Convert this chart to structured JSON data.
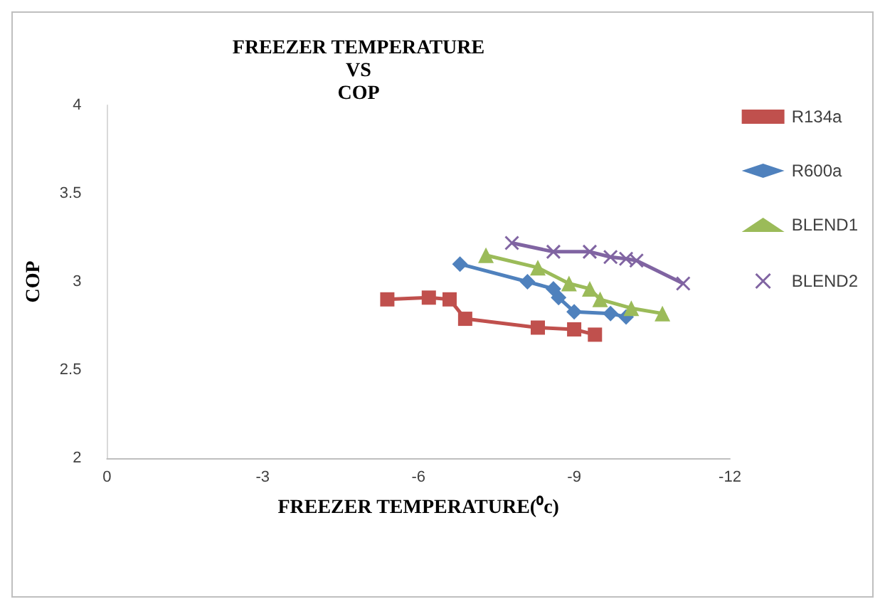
{
  "chart_data": {
    "type": "line",
    "title": "FREEZER TEMPERATURE\nVS\nCOP",
    "xlabel": "FREEZER TEMPERATURE(⁰c)",
    "ylabel": "COP",
    "xlim": [
      0,
      -12
    ],
    "xticks": [
      0,
      -3,
      -6,
      -9,
      -12
    ],
    "ylim": [
      2,
      4
    ],
    "yticks": [
      2,
      2.5,
      3,
      3.5,
      4
    ],
    "grid": false,
    "legend": "right",
    "series": [
      {
        "name": "R134a",
        "color": "#c0504d",
        "marker": "square",
        "x": [
          -5.4,
          -6.2,
          -6.6,
          -6.9,
          -8.3,
          -9.0,
          -9.4
        ],
        "values": [
          2.9,
          2.91,
          2.9,
          2.79,
          2.74,
          2.73,
          2.7
        ]
      },
      {
        "name": "R600a",
        "color": "#4f81bd",
        "marker": "diamond",
        "x": [
          -6.8,
          -8.1,
          -8.6,
          -8.7,
          -9.0,
          -9.7,
          -10.0
        ],
        "values": [
          3.1,
          3.0,
          2.96,
          2.91,
          2.83,
          2.82,
          2.8
        ]
      },
      {
        "name": "BLEND1",
        "color": "#9bbb59",
        "marker": "triangle",
        "x": [
          -7.3,
          -8.3,
          -8.9,
          -9.3,
          -9.5,
          -10.1,
          -10.7
        ],
        "values": [
          3.15,
          3.08,
          2.99,
          2.96,
          2.9,
          2.85,
          2.82
        ]
      },
      {
        "name": "BLEND2",
        "color": "#8064a2",
        "marker": "cross",
        "x": [
          -7.8,
          -8.6,
          -9.3,
          -9.7,
          -10.0,
          -10.2,
          -11.1
        ],
        "values": [
          3.22,
          3.17,
          3.17,
          3.14,
          3.13,
          3.12,
          2.99
        ]
      }
    ]
  }
}
